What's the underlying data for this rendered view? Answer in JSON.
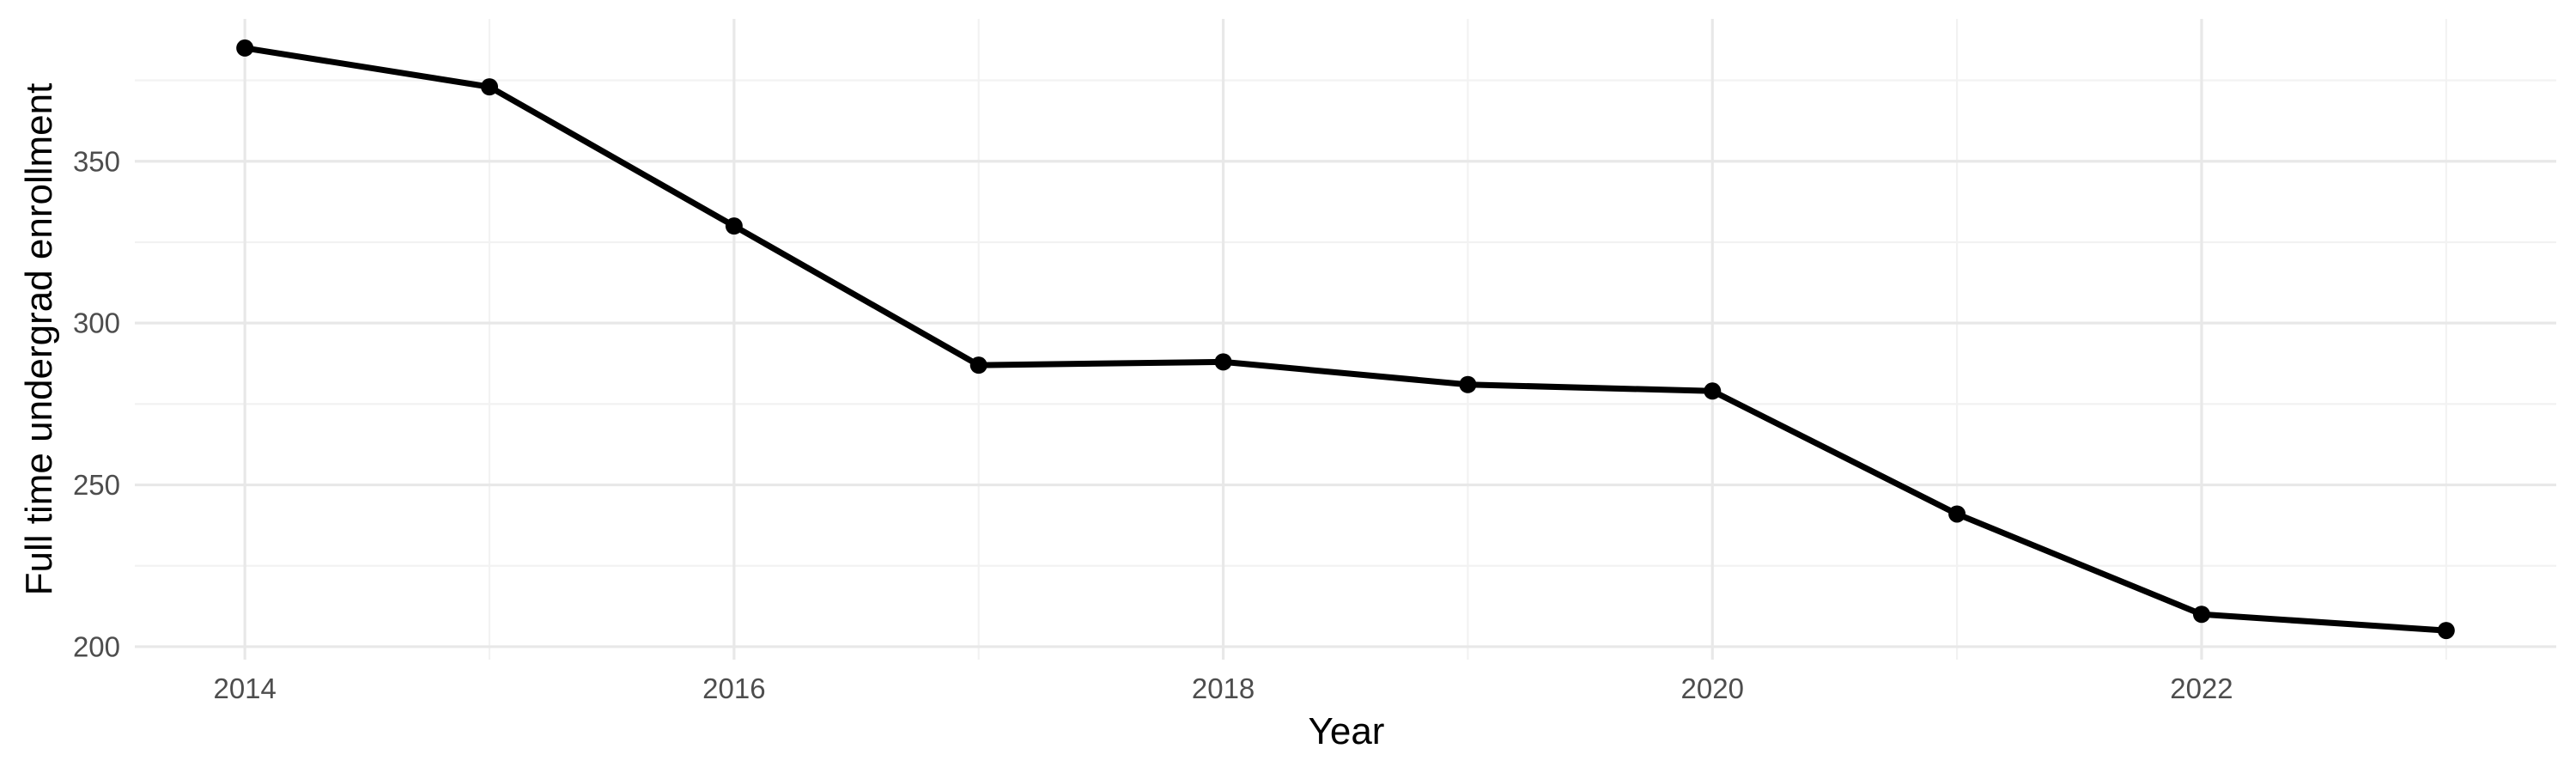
{
  "chart_data": {
    "type": "line",
    "title": "",
    "xlabel": "Year",
    "ylabel": "Full time undergrad enrollment",
    "x": [
      2014,
      2015,
      2016,
      2017,
      2018,
      2019,
      2020,
      2021,
      2022,
      2023
    ],
    "series": [
      {
        "name": "Full time undergrad enrollment",
        "values": [
          385,
          373,
          330,
          287,
          288,
          281,
          279,
          241,
          210,
          205
        ]
      }
    ],
    "xlim": [
      2013.55,
      2023.45
    ],
    "ylim": [
      196,
      394
    ],
    "x_major_ticks": [
      2014,
      2016,
      2018,
      2020,
      2022
    ],
    "x_tick_labels": [
      "2014",
      "2016",
      "2018",
      "2020",
      "2022"
    ],
    "x_minor_gridlines": [
      2015,
      2017,
      2019,
      2021,
      2023
    ],
    "y_major_ticks": [
      200,
      250,
      300,
      350
    ],
    "y_tick_labels": [
      "200",
      "250",
      "300",
      "350"
    ],
    "y_minor_gridlines": [
      225,
      275,
      325,
      375
    ],
    "grid": true,
    "legend": false,
    "style": {
      "background": "#ffffff",
      "line_color": "#000000",
      "point_color": "#000000",
      "tick_label_color": "#4d4d4d",
      "axis_title_color": "#000000",
      "grid_major_color": "#e8e8e8",
      "grid_minor_color": "#f2f2f2"
    }
  }
}
